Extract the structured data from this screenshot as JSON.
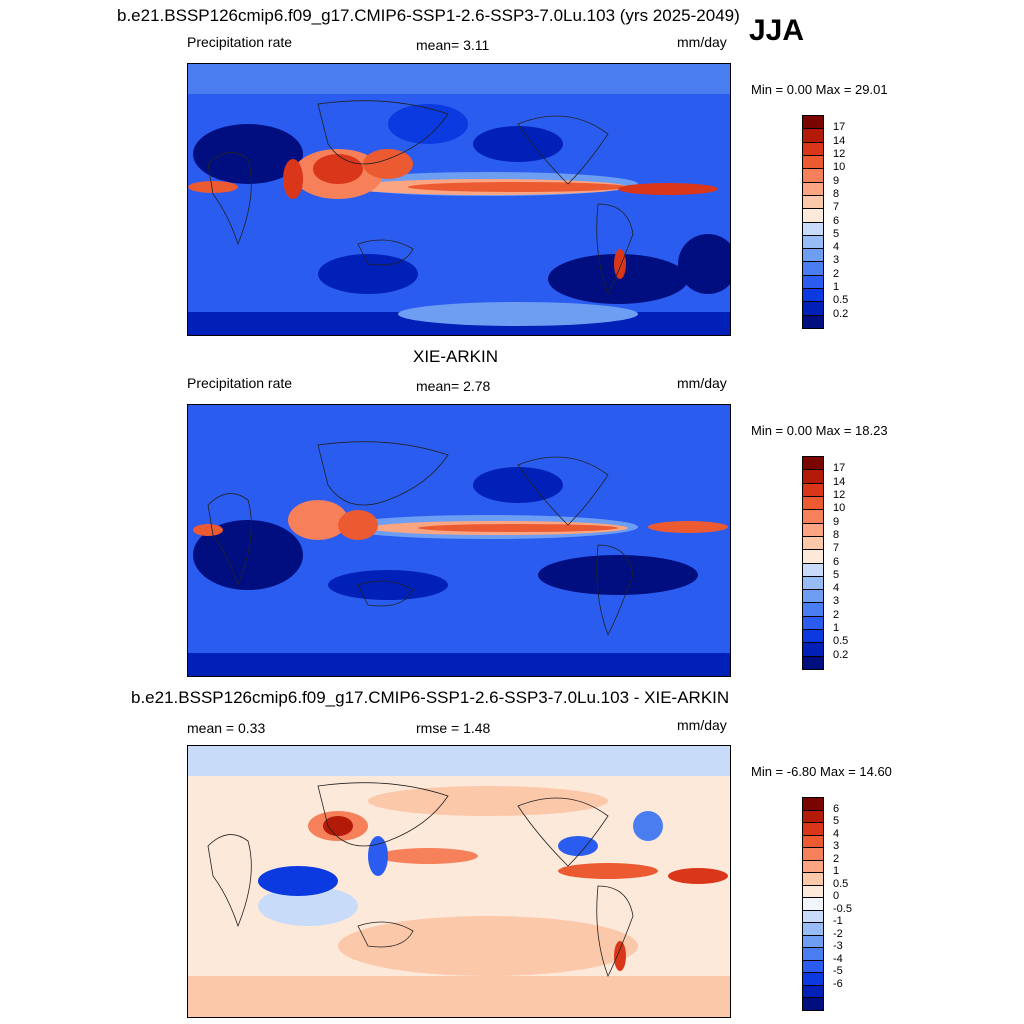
{
  "header": {
    "main_title": "b.e21.BSSP126cmip6.f09_g17.CMIP6-SSP1-2.6-SSP3-7.0Lu.103 (yrs 2025-2049)",
    "season": "JJA"
  },
  "panels": [
    {
      "title": "",
      "left_label": "Precipitation rate",
      "center_label": "mean=   3.11",
      "units": "mm/day",
      "minmax": "Min =    0.00 Max =  29.01",
      "palette": "precip",
      "colorbar_labels": [
        "17",
        "14",
        "12",
        "10",
        "9",
        "8",
        "7",
        "6",
        "5",
        "4",
        "3",
        "2",
        "1",
        "0.5",
        "0.2"
      ]
    },
    {
      "title": "XIE-ARKIN",
      "left_label": "Precipitation rate",
      "center_label": "mean=   2.78",
      "units": "mm/day",
      "minmax": "Min =    0.00 Max =  18.23",
      "palette": "precip",
      "colorbar_labels": [
        "17",
        "14",
        "12",
        "10",
        "9",
        "8",
        "7",
        "6",
        "5",
        "4",
        "3",
        "2",
        "1",
        "0.5",
        "0.2"
      ]
    },
    {
      "title": "b.e21.BSSP126cmip6.f09_g17.CMIP6-SSP1-2.6-SSP3-7.0Lu.103 - XIE-ARKIN",
      "left_label": "mean =   0.33",
      "center_label": "rmse =   1.48",
      "units": "mm/day",
      "minmax": "Min =  -6.80 Max =  14.60",
      "palette": "diff",
      "colorbar_labels": [
        "6",
        "5",
        "4",
        "3",
        "2",
        "1",
        "0.5",
        "0",
        "-0.5",
        "-1",
        "-2",
        "-3",
        "-4",
        "-5",
        "-6"
      ]
    }
  ],
  "colors": {
    "precip": [
      "#000e80",
      "#0020b8",
      "#0a3ae0",
      "#2a5cf0",
      "#4a7ef0",
      "#6e9ef2",
      "#98bcf6",
      "#c8dcfa",
      "#fde9da",
      "#fcc8aa",
      "#fca582",
      "#f6805a",
      "#ec5a32",
      "#d9361a",
      "#b31a08",
      "#7a0400"
    ],
    "diff": [
      "#000e80",
      "#0020b8",
      "#0a3ae0",
      "#2a5cf0",
      "#4a7ef0",
      "#6e9ef2",
      "#98bcf6",
      "#c8dcfa",
      "#f2f6fc",
      "#fde9da",
      "#fcc8aa",
      "#fca582",
      "#f6805a",
      "#ec5a32",
      "#d9361a",
      "#b31a08",
      "#7a0400"
    ]
  }
}
